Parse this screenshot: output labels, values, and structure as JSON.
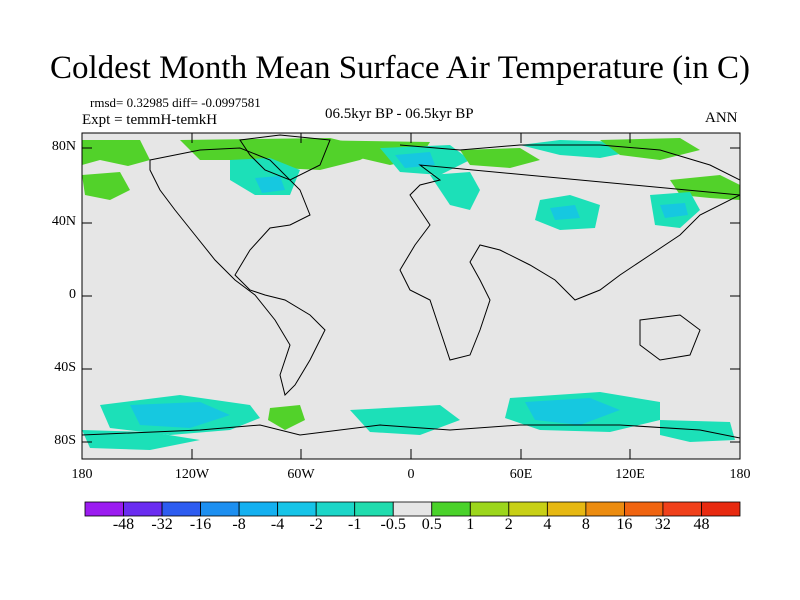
{
  "title": "Coldest Month Mean Surface Air Temperature (in C)",
  "stats": "rmsd= 0.32985  diff= -0.0997581",
  "experiment": "Expt = temmH-temkH",
  "period": "06.5kyr BP - 06.5kyr BP",
  "season": "ANN",
  "axes": {
    "y_ticks": [
      "80N",
      "40N",
      "0",
      "40S",
      "80S"
    ],
    "x_ticks": [
      "180",
      "120W",
      "60W",
      "0",
      "60E",
      "120E",
      "180"
    ]
  },
  "colorbar": {
    "labels": [
      "-48",
      "-32",
      "-16",
      "-8",
      "-4",
      "-2",
      "-1",
      "-0.5",
      "0.5",
      "1",
      "2",
      "4",
      "8",
      "16",
      "32",
      "48"
    ],
    "colors": [
      "#9b1cf0",
      "#6a2cf0",
      "#2d5cf0",
      "#1d8ff0",
      "#14b0f0",
      "#16c4e8",
      "#1cd6c8",
      "#20dcae",
      "#e6e6e6",
      "#4ad22a",
      "#9cd61c",
      "#c8d016",
      "#e6b812",
      "#ec8c10",
      "#f06410",
      "#f0401a",
      "#e82a10"
    ]
  },
  "map_colors": {
    "background": "#e6e6e6",
    "cool_light": "#1ce0b8",
    "cool_mid": "#16c8e0",
    "cool_dark": "#1ab8f0",
    "warm_green": "#52d22a",
    "warm_yellow": "#9cd61c"
  }
}
